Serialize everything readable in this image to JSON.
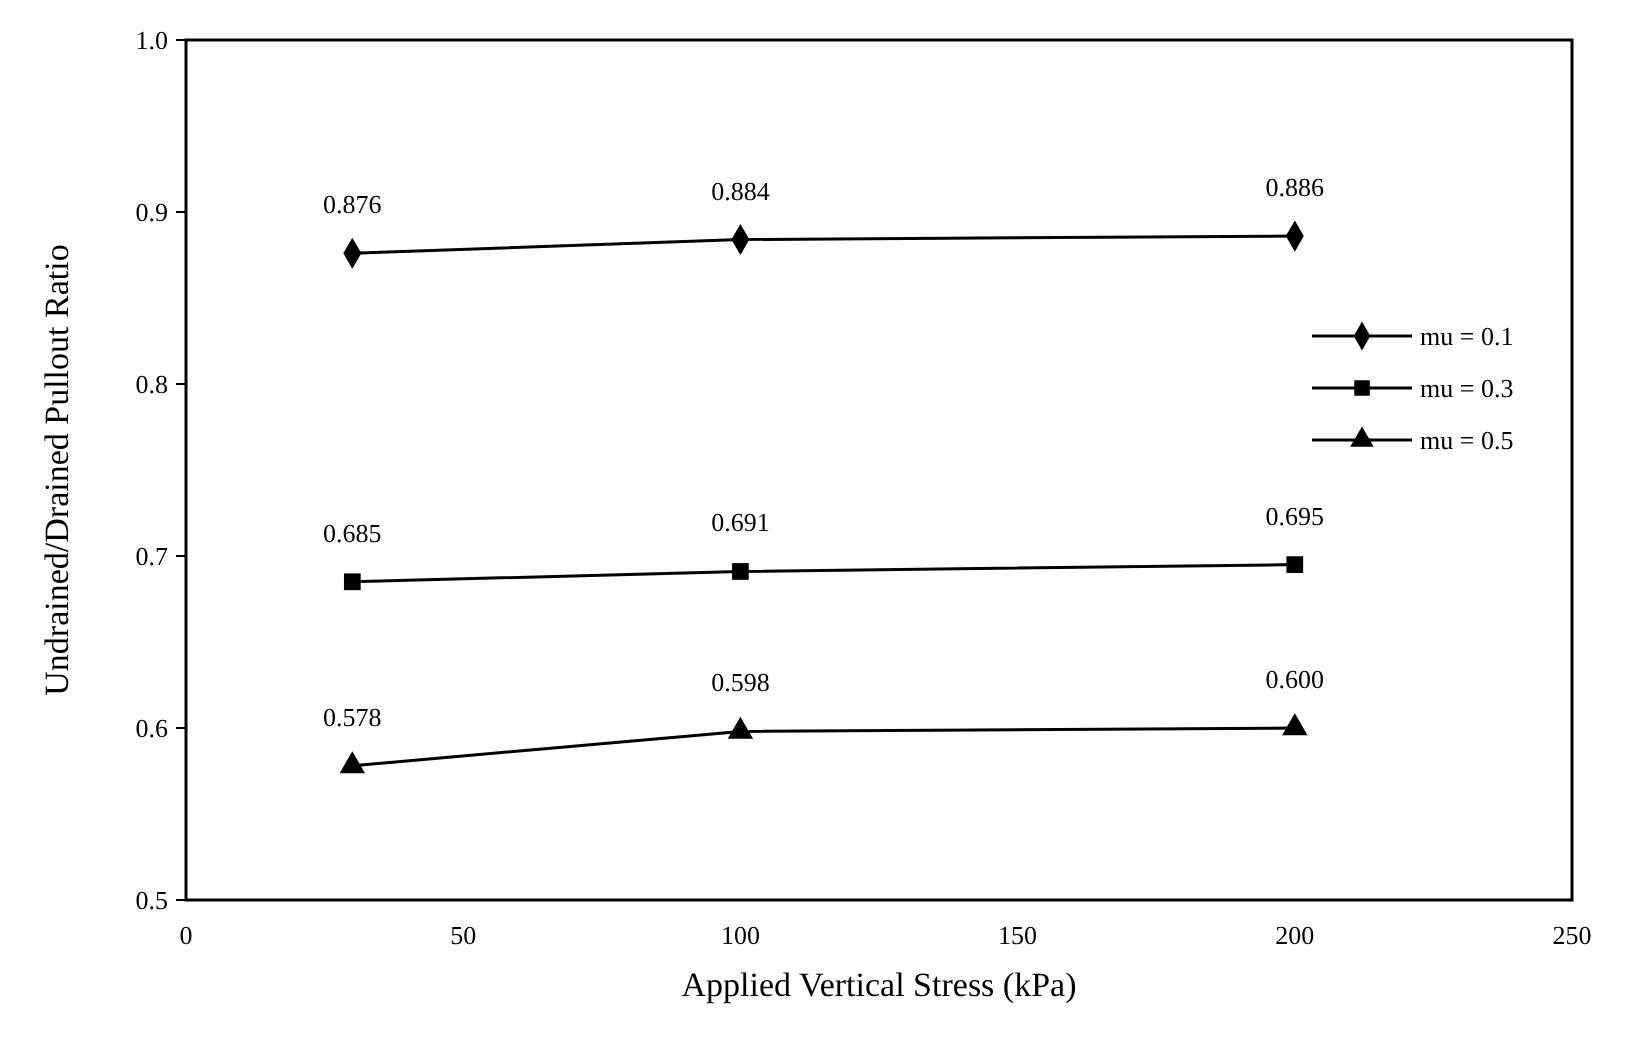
{
  "chart_data": {
    "type": "line",
    "xlabel": "Applied Vertical Stress (kPa)",
    "ylabel": "Undrained/Drained Pullout Ratio",
    "x": [
      30,
      100,
      200
    ],
    "xlim": [
      0,
      250
    ],
    "xticks": [
      0,
      50,
      100,
      150,
      200,
      250
    ],
    "ylim": [
      0.5,
      1.0
    ],
    "yticks": [
      {
        "value": 0.5,
        "label": "0.5"
      },
      {
        "value": 0.6,
        "label": "0.6"
      },
      {
        "value": 0.7,
        "label": "0.7"
      },
      {
        "value": 0.8,
        "label": "0.8"
      },
      {
        "value": 0.9,
        "label": "0.9"
      },
      {
        "value": 1.0,
        "label": "1.0"
      }
    ],
    "grid": false,
    "legend": "right",
    "line_style": "solid",
    "series": [
      {
        "name": "mu = 0.1",
        "color": "#000000",
        "marker": "diamond",
        "values": [
          0.876,
          0.884,
          0.886
        ],
        "value_labels": [
          "0.876",
          "0.884",
          "0.886"
        ]
      },
      {
        "name": "mu = 0.3",
        "color": "#000000",
        "marker": "square",
        "values": [
          0.685,
          0.691,
          0.695
        ],
        "value_labels": [
          "0.685",
          "0.691",
          "0.695"
        ]
      },
      {
        "name": "mu = 0.5",
        "color": "#000000",
        "marker": "triangle",
        "values": [
          0.578,
          0.598,
          0.6
        ],
        "value_labels": [
          "0.578",
          "0.598",
          "0.600"
        ]
      }
    ]
  }
}
